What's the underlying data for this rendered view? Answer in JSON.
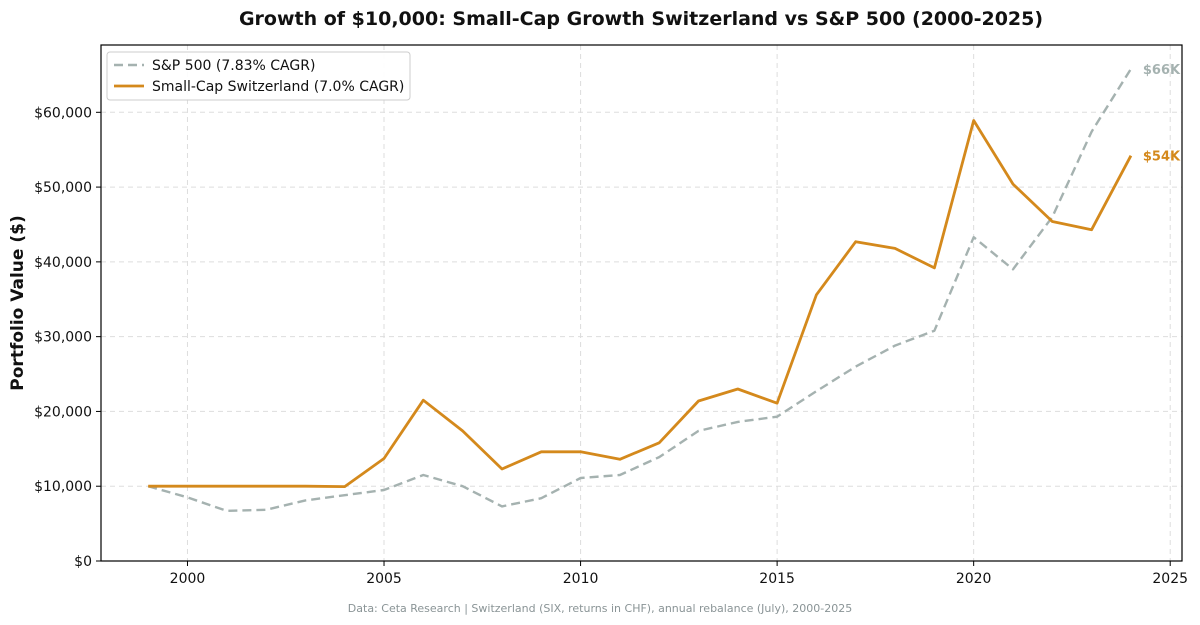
{
  "chart_data": {
    "type": "line",
    "title": "Growth of $10,000: Small-Cap Growth Switzerland vs S&P 500 (2000-2025)",
    "xlabel": "",
    "ylabel": "Portfolio Value ($)",
    "xlim": [
      1997.8,
      2025.3
    ],
    "ylim": [
      0,
      69000
    ],
    "x_ticks": [
      2000,
      2005,
      2010,
      2015,
      2020,
      2025
    ],
    "x_tick_labels": [
      "2000",
      "2005",
      "2010",
      "2015",
      "2020",
      "2025"
    ],
    "y_ticks": [
      0,
      10000,
      20000,
      30000,
      40000,
      50000,
      60000
    ],
    "y_tick_labels": [
      "$0",
      "$10,000",
      "$20,000",
      "$30,000",
      "$40,000",
      "$50,000",
      "$60,000"
    ],
    "grid": true,
    "legend_position": "top-left",
    "x": [
      1999,
      2000,
      2001,
      2002,
      2003,
      2004,
      2005,
      2006,
      2007,
      2008,
      2009,
      2010,
      2011,
      2012,
      2013,
      2014,
      2015,
      2016,
      2017,
      2018,
      2019,
      2020,
      2021,
      2022,
      2023,
      2024
    ],
    "series": [
      {
        "name": "S&P 500 (7.83% CAGR)",
        "style": "dashed",
        "color": "#a5b2b0",
        "values": [
          10000,
          8500,
          6700,
          6850,
          8100,
          8800,
          9500,
          11500,
          10000,
          7300,
          8400,
          11100,
          11500,
          13900,
          17400,
          18600,
          19300,
          22700,
          26000,
          28800,
          30800,
          43300,
          39000,
          46000,
          57400,
          65800
        ],
        "end_label": "$66K"
      },
      {
        "name": "Small-Cap Switzerland (7.0% CAGR)",
        "style": "solid",
        "color": "#d4891c",
        "values": [
          10000,
          10000,
          10000,
          10000,
          10000,
          9950,
          13700,
          21500,
          17400,
          12300,
          14600,
          14600,
          13600,
          15800,
          21400,
          23000,
          21100,
          35600,
          42700,
          41800,
          39200,
          58900,
          50400,
          45400,
          44300,
          54200
        ],
        "end_label": "$54K"
      }
    ],
    "footnote": "Data: Ceta Research | Switzerland (SIX, returns in CHF), annual rebalance (July), 2000-2025"
  }
}
